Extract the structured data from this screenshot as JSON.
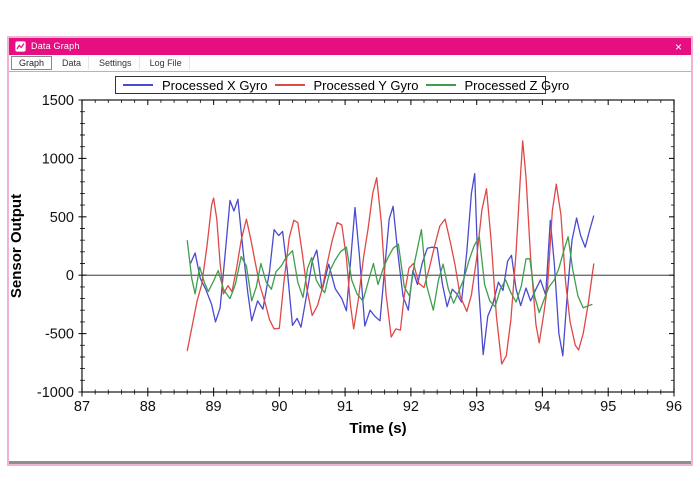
{
  "window": {
    "title": "Data Graph",
    "close_label": "×"
  },
  "tabs": [
    {
      "label": "Graph",
      "selected": true
    },
    {
      "label": "Data",
      "selected": false
    },
    {
      "label": "Settings",
      "selected": false
    },
    {
      "label": "Log File",
      "selected": false
    }
  ],
  "chart_data": {
    "type": "line",
    "title": "",
    "xlabel": "Time (s)",
    "ylabel": "Sensor Output",
    "xlim": [
      87,
      96
    ],
    "ylim": [
      -1000,
      1500
    ],
    "x_tick_labels": [
      87,
      88,
      89,
      90,
      91,
      92,
      93,
      94,
      95,
      96
    ],
    "y_tick_labels": [
      -1000,
      -500,
      0,
      500,
      1000,
      1500
    ],
    "x_minor_step": 0.2,
    "y_minor_step": 100,
    "grid": false,
    "zero_line": true,
    "legend_position": "top",
    "series": [
      {
        "name": "Processed X Gyro",
        "color": "#4a4ad0",
        "points": [
          [
            88.65,
            100
          ],
          [
            88.72,
            190
          ],
          [
            88.8,
            -30
          ],
          [
            88.88,
            -120
          ],
          [
            88.97,
            -250
          ],
          [
            89.03,
            -400
          ],
          [
            89.1,
            -280
          ],
          [
            89.17,
            140
          ],
          [
            89.25,
            640
          ],
          [
            89.31,
            550
          ],
          [
            89.37,
            650
          ],
          [
            89.45,
            200
          ],
          [
            89.52,
            -150
          ],
          [
            89.58,
            -390
          ],
          [
            89.67,
            -220
          ],
          [
            89.75,
            -290
          ],
          [
            89.85,
            30
          ],
          [
            89.92,
            390
          ],
          [
            89.99,
            340
          ],
          [
            90.05,
            375
          ],
          [
            90.12,
            50
          ],
          [
            90.2,
            -430
          ],
          [
            90.27,
            -370
          ],
          [
            90.33,
            -445
          ],
          [
            90.42,
            -150
          ],
          [
            90.5,
            120
          ],
          [
            90.57,
            215
          ],
          [
            90.65,
            -130
          ],
          [
            90.75,
            95
          ],
          [
            90.85,
            -115
          ],
          [
            90.95,
            -200
          ],
          [
            91.02,
            -305
          ],
          [
            91.08,
            100
          ],
          [
            91.15,
            580
          ],
          [
            91.22,
            150
          ],
          [
            91.3,
            -435
          ],
          [
            91.38,
            -300
          ],
          [
            91.45,
            -350
          ],
          [
            91.53,
            -390
          ],
          [
            91.6,
            50
          ],
          [
            91.67,
            480
          ],
          [
            91.73,
            590
          ],
          [
            91.8,
            200
          ],
          [
            91.88,
            -180
          ],
          [
            91.96,
            -300
          ],
          [
            92.03,
            40
          ],
          [
            92.1,
            -80
          ],
          [
            92.17,
            100
          ],
          [
            92.25,
            230
          ],
          [
            92.32,
            240
          ],
          [
            92.4,
            235
          ],
          [
            92.48,
            -80
          ],
          [
            92.55,
            -270
          ],
          [
            92.63,
            -120
          ],
          [
            92.7,
            -160
          ],
          [
            92.77,
            -230
          ],
          [
            92.85,
            200
          ],
          [
            92.92,
            700
          ],
          [
            92.97,
            870
          ],
          [
            93.03,
            -100
          ],
          [
            93.1,
            -680
          ],
          [
            93.17,
            -350
          ],
          [
            93.25,
            -240
          ],
          [
            93.33,
            -60
          ],
          [
            93.4,
            -130
          ],
          [
            93.47,
            120
          ],
          [
            93.53,
            170
          ],
          [
            93.6,
            -120
          ],
          [
            93.67,
            -260
          ],
          [
            93.75,
            -110
          ],
          [
            93.82,
            -220
          ],
          [
            93.9,
            -120
          ],
          [
            93.97,
            -40
          ],
          [
            94.05,
            -170
          ],
          [
            94.12,
            470
          ],
          [
            94.18,
            100
          ],
          [
            94.25,
            -500
          ],
          [
            94.31,
            -690
          ],
          [
            94.38,
            -150
          ],
          [
            94.45,
            300
          ],
          [
            94.52,
            490
          ],
          [
            94.58,
            340
          ],
          [
            94.65,
            240
          ],
          [
            94.72,
            390
          ],
          [
            94.78,
            510
          ]
        ]
      },
      {
        "name": "Processed Y Gyro",
        "color": "#e04848",
        "points": [
          [
            88.6,
            -650
          ],
          [
            88.68,
            -420
          ],
          [
            88.75,
            -220
          ],
          [
            88.82,
            -80
          ],
          [
            88.9,
            250
          ],
          [
            88.97,
            600
          ],
          [
            89.0,
            660
          ],
          [
            89.05,
            480
          ],
          [
            89.1,
            100
          ],
          [
            89.15,
            -160
          ],
          [
            89.22,
            -90
          ],
          [
            89.28,
            -140
          ],
          [
            89.35,
            60
          ],
          [
            89.42,
            300
          ],
          [
            89.5,
            480
          ],
          [
            89.57,
            300
          ],
          [
            89.63,
            120
          ],
          [
            89.7,
            -80
          ],
          [
            89.78,
            -230
          ],
          [
            89.85,
            -380
          ],
          [
            89.92,
            -460
          ],
          [
            90.0,
            -455
          ],
          [
            90.07,
            -60
          ],
          [
            90.15,
            320
          ],
          [
            90.22,
            470
          ],
          [
            90.28,
            450
          ],
          [
            90.35,
            180
          ],
          [
            90.42,
            -120
          ],
          [
            90.5,
            -345
          ],
          [
            90.58,
            -260
          ],
          [
            90.65,
            -120
          ],
          [
            90.72,
            80
          ],
          [
            90.8,
            290
          ],
          [
            90.88,
            450
          ],
          [
            90.95,
            430
          ],
          [
            91.02,
            150
          ],
          [
            91.08,
            -250
          ],
          [
            91.13,
            -460
          ],
          [
            91.2,
            -210
          ],
          [
            91.28,
            150
          ],
          [
            91.35,
            400
          ],
          [
            91.42,
            700
          ],
          [
            91.48,
            835
          ],
          [
            91.55,
            450
          ],
          [
            91.62,
            -150
          ],
          [
            91.7,
            -530
          ],
          [
            91.77,
            -460
          ],
          [
            91.84,
            -470
          ],
          [
            91.9,
            -170
          ],
          [
            91.97,
            60
          ],
          [
            92.04,
            100
          ],
          [
            92.12,
            -70
          ],
          [
            92.2,
            -105
          ],
          [
            92.28,
            60
          ],
          [
            92.36,
            250
          ],
          [
            92.44,
            420
          ],
          [
            92.52,
            480
          ],
          [
            92.6,
            280
          ],
          [
            92.67,
            90
          ],
          [
            92.75,
            -180
          ],
          [
            92.85,
            -310
          ],
          [
            92.92,
            -170
          ],
          [
            93.0,
            150
          ],
          [
            93.08,
            560
          ],
          [
            93.15,
            740
          ],
          [
            93.22,
            300
          ],
          [
            93.3,
            -350
          ],
          [
            93.38,
            -760
          ],
          [
            93.45,
            -690
          ],
          [
            93.52,
            -380
          ],
          [
            93.6,
            200
          ],
          [
            93.66,
            800
          ],
          [
            93.7,
            1150
          ],
          [
            93.75,
            840
          ],
          [
            93.82,
            150
          ],
          [
            93.9,
            -420
          ],
          [
            93.95,
            -580
          ],
          [
            94.02,
            -330
          ],
          [
            94.08,
            -80
          ],
          [
            94.15,
            550
          ],
          [
            94.21,
            780
          ],
          [
            94.28,
            520
          ],
          [
            94.35,
            -50
          ],
          [
            94.42,
            -400
          ],
          [
            94.5,
            -600
          ],
          [
            94.55,
            -640
          ],
          [
            94.62,
            -500
          ],
          [
            94.7,
            -230
          ],
          [
            94.78,
            100
          ]
        ]
      },
      {
        "name": "Processed Z Gyro",
        "color": "#3f9e4d",
        "points": [
          [
            88.6,
            300
          ],
          [
            88.67,
            -30
          ],
          [
            88.72,
            -160
          ],
          [
            88.79,
            70
          ],
          [
            88.86,
            -60
          ],
          [
            88.92,
            -140
          ],
          [
            89.0,
            -50
          ],
          [
            89.07,
            40
          ],
          [
            89.15,
            -120
          ],
          [
            89.25,
            -200
          ],
          [
            89.33,
            -80
          ],
          [
            89.42,
            160
          ],
          [
            89.5,
            80
          ],
          [
            89.58,
            -220
          ],
          [
            89.65,
            -100
          ],
          [
            89.72,
            100
          ],
          [
            89.8,
            -60
          ],
          [
            89.88,
            -120
          ],
          [
            89.95,
            30
          ],
          [
            90.03,
            80
          ],
          [
            90.1,
            150
          ],
          [
            90.2,
            210
          ],
          [
            90.28,
            -60
          ],
          [
            90.36,
            -190
          ],
          [
            90.43,
            60
          ],
          [
            90.49,
            150
          ],
          [
            90.56,
            -40
          ],
          [
            90.62,
            -100
          ],
          [
            90.69,
            -150
          ],
          [
            90.77,
            40
          ],
          [
            90.85,
            130
          ],
          [
            90.93,
            200
          ],
          [
            91.02,
            240
          ],
          [
            91.1,
            -40
          ],
          [
            91.18,
            -160
          ],
          [
            91.27,
            -220
          ],
          [
            91.35,
            -60
          ],
          [
            91.43,
            100
          ],
          [
            91.5,
            -80
          ],
          [
            91.58,
            60
          ],
          [
            91.65,
            150
          ],
          [
            91.73,
            230
          ],
          [
            91.81,
            265
          ],
          [
            91.9,
            -100
          ],
          [
            91.98,
            -180
          ],
          [
            92.06,
            120
          ],
          [
            92.16,
            390
          ],
          [
            92.24,
            -90
          ],
          [
            92.34,
            -300
          ],
          [
            92.42,
            -40
          ],
          [
            92.49,
            95
          ],
          [
            92.57,
            -120
          ],
          [
            92.65,
            -240
          ],
          [
            92.72,
            -150
          ],
          [
            92.8,
            -40
          ],
          [
            92.88,
            120
          ],
          [
            92.96,
            250
          ],
          [
            93.04,
            330
          ],
          [
            93.12,
            -80
          ],
          [
            93.2,
            -220
          ],
          [
            93.28,
            -270
          ],
          [
            93.36,
            -120
          ],
          [
            93.44,
            -40
          ],
          [
            93.52,
            -150
          ],
          [
            93.6,
            -230
          ],
          [
            93.68,
            -90
          ],
          [
            93.75,
            140
          ],
          [
            93.81,
            140
          ],
          [
            93.88,
            -180
          ],
          [
            93.95,
            -320
          ],
          [
            94.03,
            -200
          ],
          [
            94.1,
            -100
          ],
          [
            94.18,
            -40
          ],
          [
            94.25,
            60
          ],
          [
            94.32,
            200
          ],
          [
            94.39,
            330
          ],
          [
            94.46,
            50
          ],
          [
            94.54,
            -180
          ],
          [
            94.62,
            -280
          ],
          [
            94.7,
            -260
          ],
          [
            94.76,
            -250
          ]
        ]
      }
    ]
  }
}
